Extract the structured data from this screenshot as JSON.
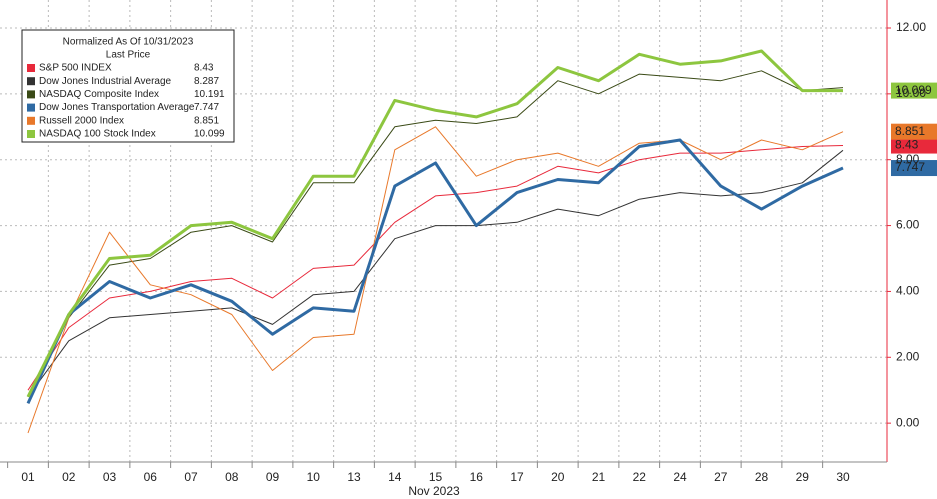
{
  "chart_data": {
    "type": "line",
    "legend_title": "Normalized As Of 10/31/2023",
    "legend_subtitle": "Last Price",
    "x_label": "Nov 2023",
    "categories": [
      "01",
      "02",
      "03",
      "06",
      "07",
      "08",
      "09",
      "10",
      "13",
      "14",
      "15",
      "16",
      "17",
      "20",
      "21",
      "22",
      "24",
      "27",
      "28",
      "29",
      "30"
    ],
    "series": [
      {
        "name": "S&P 500 INDEX",
        "color": "#e8293b",
        "width": 1,
        "end_label": true,
        "values": [
          1.0,
          2.9,
          3.8,
          4.0,
          4.3,
          4.4,
          3.8,
          4.7,
          4.8,
          6.1,
          6.9,
          7.0,
          7.2,
          7.8,
          7.6,
          8.0,
          8.2,
          8.2,
          8.3,
          8.4,
          8.43
        ]
      },
      {
        "name": "Dow Jones Industrial Average",
        "color": "#333333",
        "width": 1,
        "end_label": false,
        "values": [
          0.8,
          2.5,
          3.2,
          3.3,
          3.4,
          3.5,
          3.0,
          3.9,
          4.0,
          5.6,
          6.0,
          6.0,
          6.1,
          6.5,
          6.3,
          6.8,
          7.0,
          6.9,
          7.0,
          7.3,
          8.287
        ]
      },
      {
        "name": "NASDAQ Composite Index",
        "color": "#3a4a16",
        "width": 1,
        "end_label": false,
        "values": [
          0.8,
          3.2,
          4.8,
          5.0,
          5.8,
          6.0,
          5.5,
          7.3,
          7.3,
          9.0,
          9.2,
          9.1,
          9.3,
          10.4,
          10.0,
          10.6,
          10.5,
          10.4,
          10.7,
          10.1,
          10.191
        ]
      },
      {
        "name": "Dow Jones Transportation Average",
        "color": "#2f6aa3",
        "width": 3,
        "end_label": true,
        "values": [
          0.6,
          3.3,
          4.3,
          3.8,
          4.2,
          3.7,
          2.7,
          3.5,
          3.4,
          7.2,
          7.9,
          6.0,
          7.0,
          7.4,
          7.3,
          8.4,
          8.6,
          7.2,
          6.5,
          7.2,
          7.747
        ]
      },
      {
        "name": "Russell 2000 Index",
        "color": "#e8782a",
        "width": 1,
        "end_label": true,
        "values": [
          -0.3,
          3.2,
          5.8,
          4.2,
          3.9,
          3.3,
          1.6,
          2.6,
          2.7,
          8.3,
          9.0,
          7.5,
          8.0,
          8.2,
          7.8,
          8.5,
          8.6,
          8.0,
          8.6,
          8.3,
          8.851
        ]
      },
      {
        "name": "NASDAQ 100 Stock Index",
        "color": "#8dc63f",
        "width": 3,
        "end_label": true,
        "values": [
          0.8,
          3.3,
          5.0,
          5.1,
          6.0,
          6.1,
          5.6,
          7.5,
          7.5,
          9.8,
          9.5,
          9.3,
          9.7,
          10.8,
          10.4,
          11.2,
          10.9,
          11.0,
          11.3,
          10.1,
          10.099
        ]
      }
    ],
    "ylim": [
      -1.18,
      12.85
    ],
    "yticks": [
      {
        "value": 0,
        "label": "0.00"
      },
      {
        "value": 2,
        "label": "2.00"
      },
      {
        "value": 4,
        "label": "4.00"
      },
      {
        "value": 6,
        "label": "6.00"
      },
      {
        "value": 8,
        "label": "8.00"
      },
      {
        "value": 10,
        "label": "10.00"
      },
      {
        "value": 12,
        "label": "12.00"
      }
    ],
    "grid": true
  }
}
